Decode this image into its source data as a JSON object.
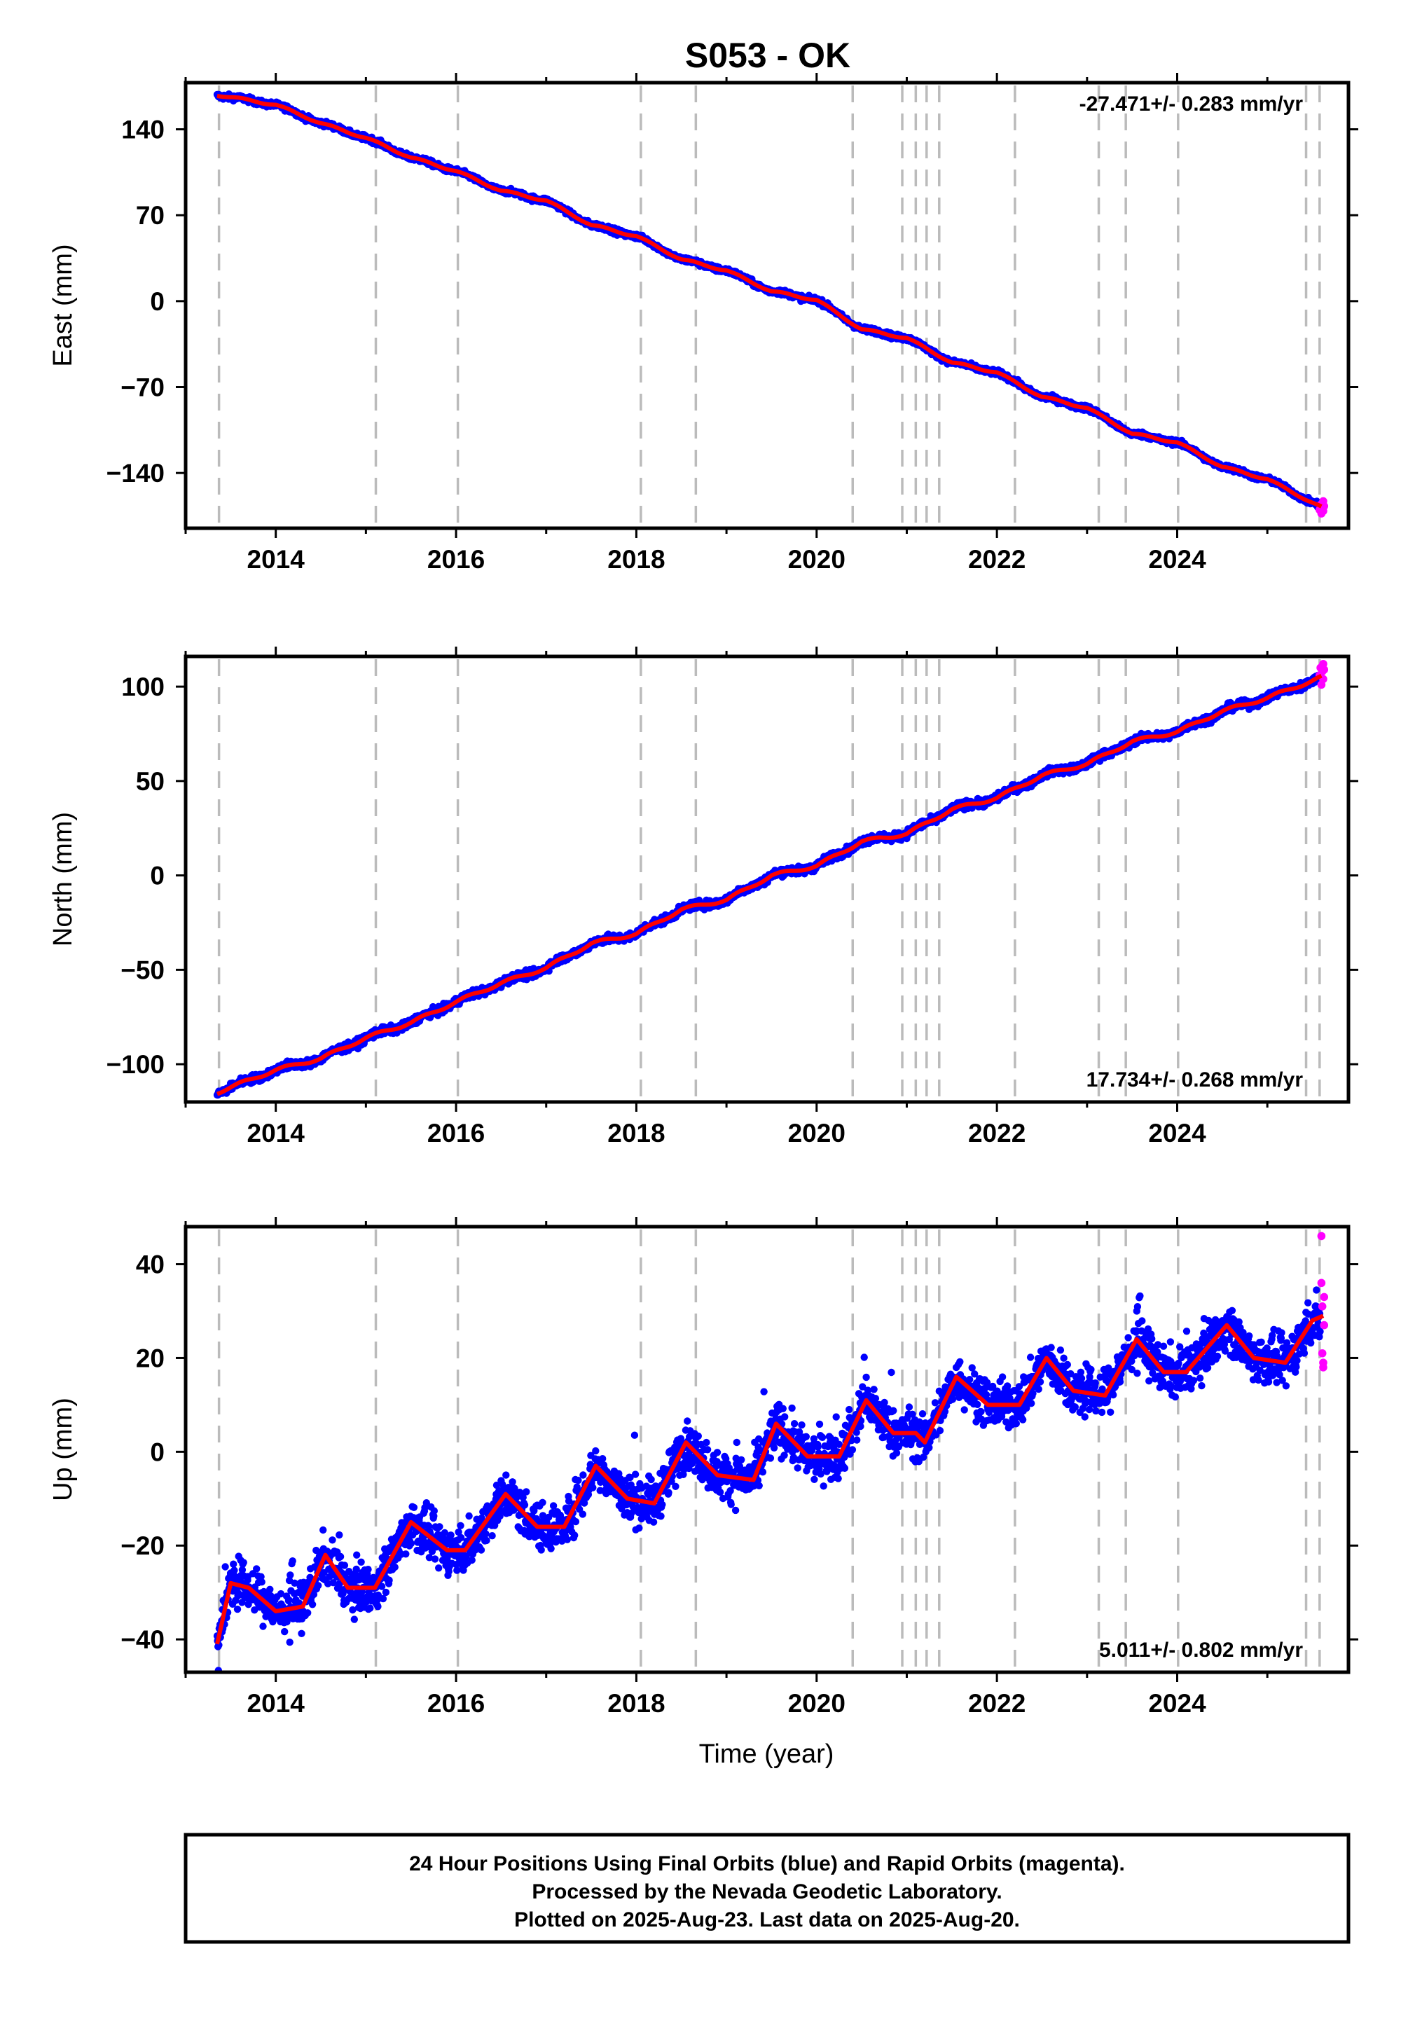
{
  "title": "S053 - OK",
  "x_axis_label": "Time (year)",
  "footer_lines": [
    "24 Hour Positions Using Final Orbits (blue) and Rapid Orbits (magenta).",
    "Processed by the Nevada Geodetic Laboratory.",
    "Plotted on 2025-Aug-23. Last data on 2025-Aug-20."
  ],
  "colors": {
    "final_orbits": "#0000ff",
    "rapid_orbits": "#ff00ff",
    "model_fit": "#ff0000",
    "events": "#bbbbbb"
  },
  "chart_data": [
    {
      "type": "scatter",
      "ylabel": "East (mm)",
      "rate_label": "-27.471+/- 0.283 mm/yr",
      "rate_position": "top-right",
      "xlim": [
        2013.0,
        2025.9
      ],
      "ylim": [
        -185,
        178
      ],
      "x_ticks": [
        2014,
        2016,
        2018,
        2020,
        2022,
        2024
      ],
      "y_ticks": [
        140,
        70,
        0,
        -70,
        -140
      ],
      "y_tick_labels": [
        "140",
        "70",
        "0",
        "−70",
        "−140"
      ],
      "event_lines": [
        2013.37,
        2015.11,
        2016.02,
        2018.05,
        2018.66,
        2020.4,
        2020.95,
        2021.1,
        2021.22,
        2021.36,
        2022.2,
        2023.13,
        2023.43,
        2024.01,
        2025.43,
        2025.58
      ],
      "trend_anchors": [
        [
          2013.35,
          168
        ],
        [
          2014.0,
          160
        ],
        [
          2014.5,
          145
        ],
        [
          2015.0,
          133
        ],
        [
          2015.5,
          117
        ],
        [
          2016.0,
          106
        ],
        [
          2016.5,
          90
        ],
        [
          2017.0,
          82
        ],
        [
          2017.5,
          62
        ],
        [
          2018.0,
          53
        ],
        [
          2018.5,
          34
        ],
        [
          2019.0,
          25
        ],
        [
          2019.5,
          8
        ],
        [
          2020.0,
          1
        ],
        [
          2020.5,
          -23
        ],
        [
          2021.0,
          -30
        ],
        [
          2021.5,
          -50
        ],
        [
          2022.0,
          -58
        ],
        [
          2022.5,
          -78
        ],
        [
          2023.0,
          -87
        ],
        [
          2023.5,
          -108
        ],
        [
          2024.0,
          -115
        ],
        [
          2024.5,
          -135
        ],
        [
          2025.0,
          -145
        ],
        [
          2025.6,
          -168
        ]
      ],
      "seasonal_amp": 0.8,
      "scatter_sd": 1.6,
      "rapid_points": [
        [
          2025.58,
          -170
        ],
        [
          2025.59,
          -166
        ],
        [
          2025.6,
          -173
        ],
        [
          2025.61,
          -168
        ],
        [
          2025.62,
          -163
        ],
        [
          2025.62,
          -171
        ],
        [
          2025.63,
          -167
        ]
      ]
    },
    {
      "type": "scatter",
      "ylabel": "North (mm)",
      "rate_label": "17.734+/- 0.268 mm/yr",
      "rate_position": "bottom-right",
      "xlim": [
        2013.0,
        2025.9
      ],
      "ylim": [
        -120,
        116
      ],
      "x_ticks": [
        2014,
        2016,
        2018,
        2020,
        2022,
        2024
      ],
      "y_ticks": [
        100,
        50,
        0,
        -50,
        -100
      ],
      "y_tick_labels": [
        "100",
        "50",
        "0",
        "−50",
        "−100"
      ],
      "event_lines": [
        2013.37,
        2015.11,
        2016.02,
        2018.05,
        2018.66,
        2020.4,
        2020.95,
        2021.1,
        2021.22,
        2021.36,
        2022.2,
        2023.13,
        2023.43,
        2024.01,
        2025.43,
        2025.58
      ],
      "trend_anchors": [
        [
          2013.35,
          -115
        ],
        [
          2014.0,
          -103
        ],
        [
          2014.5,
          -97
        ],
        [
          2015.0,
          -86
        ],
        [
          2015.5,
          -78
        ],
        [
          2016.0,
          -67
        ],
        [
          2016.5,
          -57
        ],
        [
          2017.0,
          -49
        ],
        [
          2017.5,
          -36
        ],
        [
          2018.0,
          -31
        ],
        [
          2018.5,
          -18
        ],
        [
          2019.0,
          -13
        ],
        [
          2019.5,
          0
        ],
        [
          2020.0,
          5
        ],
        [
          2020.5,
          18
        ],
        [
          2021.0,
          22
        ],
        [
          2021.5,
          35
        ],
        [
          2022.0,
          41
        ],
        [
          2022.5,
          53
        ],
        [
          2023.0,
          59
        ],
        [
          2023.5,
          71
        ],
        [
          2024.0,
          76
        ],
        [
          2024.5,
          87
        ],
        [
          2025.0,
          94
        ],
        [
          2025.6,
          105
        ]
      ],
      "seasonal_amp": 0.8,
      "scatter_sd": 1.5,
      "rapid_points": [
        [
          2025.58,
          106
        ],
        [
          2025.59,
          110
        ],
        [
          2025.6,
          101
        ],
        [
          2025.61,
          108
        ],
        [
          2025.62,
          112
        ],
        [
          2025.62,
          104
        ],
        [
          2025.63,
          109
        ]
      ]
    },
    {
      "type": "scatter",
      "ylabel": "Up (mm)",
      "rate_label": "5.011+/- 0.802 mm/yr",
      "rate_position": "bottom-right",
      "xlim": [
        2013.0,
        2025.9
      ],
      "ylim": [
        -47,
        48
      ],
      "x_ticks": [
        2014,
        2016,
        2018,
        2020,
        2022,
        2024
      ],
      "y_ticks": [
        40,
        20,
        0,
        -20,
        -40
      ],
      "y_tick_labels": [
        "40",
        "20",
        "0",
        "−20",
        "−40"
      ],
      "event_lines": [
        2013.37,
        2015.11,
        2016.02,
        2018.05,
        2018.66,
        2020.4,
        2020.95,
        2021.1,
        2021.22,
        2021.36,
        2022.2,
        2023.13,
        2023.43,
        2024.01,
        2025.43,
        2025.58
      ],
      "trend_anchors": [
        [
          2013.35,
          -41
        ],
        [
          2013.5,
          -28
        ],
        [
          2013.7,
          -29
        ],
        [
          2014.0,
          -34
        ],
        [
          2014.3,
          -33
        ],
        [
          2014.55,
          -22
        ],
        [
          2014.8,
          -29
        ],
        [
          2015.1,
          -29
        ],
        [
          2015.5,
          -15
        ],
        [
          2015.9,
          -21
        ],
        [
          2016.1,
          -21
        ],
        [
          2016.55,
          -9
        ],
        [
          2016.9,
          -16
        ],
        [
          2017.2,
          -16
        ],
        [
          2017.55,
          -3
        ],
        [
          2017.9,
          -10
        ],
        [
          2018.2,
          -11
        ],
        [
          2018.55,
          2
        ],
        [
          2018.9,
          -5
        ],
        [
          2019.3,
          -6
        ],
        [
          2019.55,
          6
        ],
        [
          2019.9,
          -1
        ],
        [
          2020.25,
          -1
        ],
        [
          2020.55,
          11
        ],
        [
          2020.85,
          4
        ],
        [
          2021.1,
          4
        ],
        [
          2021.2,
          2
        ],
        [
          2021.55,
          16
        ],
        [
          2021.9,
          10
        ],
        [
          2022.25,
          10
        ],
        [
          2022.55,
          20
        ],
        [
          2022.85,
          13
        ],
        [
          2023.2,
          12
        ],
        [
          2023.55,
          24
        ],
        [
          2023.85,
          17
        ],
        [
          2024.1,
          17
        ],
        [
          2024.55,
          27
        ],
        [
          2024.85,
          20
        ],
        [
          2025.2,
          19
        ],
        [
          2025.5,
          28
        ],
        [
          2025.62,
          29
        ]
      ],
      "seasonal_amp": 0,
      "scatter_sd": 3.5,
      "rapid_points": [
        [
          2025.6,
          46
        ],
        [
          2025.6,
          36
        ],
        [
          2025.61,
          31
        ],
        [
          2025.61,
          21
        ],
        [
          2025.62,
          19
        ],
        [
          2025.62,
          18
        ],
        [
          2025.63,
          33
        ],
        [
          2025.63,
          27
        ]
      ]
    }
  ]
}
